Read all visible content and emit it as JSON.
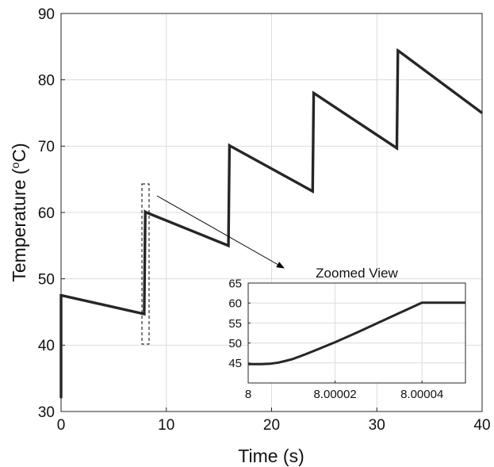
{
  "chart_data": [
    {
      "type": "line",
      "xlabel": "Time (s)",
      "ylabel_main": "Temperature (",
      "ylabel_sup": "o",
      "ylabel_tail": "C)",
      "xlim": [
        0,
        40
      ],
      "ylim": [
        30,
        90
      ],
      "xticks": [
        0,
        10,
        20,
        30,
        40
      ],
      "yticks": [
        30,
        40,
        50,
        60,
        70,
        80,
        90
      ],
      "grid": true,
      "line_color": "#262626",
      "x": [
        0,
        0,
        0.05,
        7.9,
        8.0,
        8.1,
        15.9,
        16.0,
        16.1,
        23.9,
        24.0,
        24.1,
        31.9,
        32.0,
        32.1,
        40.0
      ],
      "y": [
        32,
        47.5,
        47.5,
        44.7,
        60.1,
        60.0,
        55.0,
        70.1,
        70.0,
        63.2,
        78.0,
        77.9,
        69.7,
        84.4,
        84.3,
        75.0
      ]
    },
    {
      "type": "line",
      "title": "Zoomed View",
      "xlim": [
        8,
        8.00005
      ],
      "ylim": [
        40,
        65
      ],
      "xticks": [
        8,
        8.00002,
        8.00004
      ],
      "xtick_labels": [
        "8",
        "8.00002",
        "8.00004"
      ],
      "yticks": [
        45,
        50,
        55,
        60,
        65
      ],
      "grid": true,
      "line_color": "#262626",
      "x": [
        8,
        8.000003,
        8.000005,
        8.000007,
        8.00001,
        8.000013,
        8.000016,
        8.00002,
        8.000025,
        8.00003,
        8.000035,
        8.00004,
        8.000045,
        8.00005
      ],
      "y": [
        44.7,
        44.7,
        44.8,
        45.1,
        45.9,
        47.1,
        48.4,
        50.2,
        52.6,
        55.1,
        57.6,
        60.1,
        60.1,
        60.1
      ]
    }
  ],
  "annotation": {
    "arrow_color": "#000000"
  }
}
